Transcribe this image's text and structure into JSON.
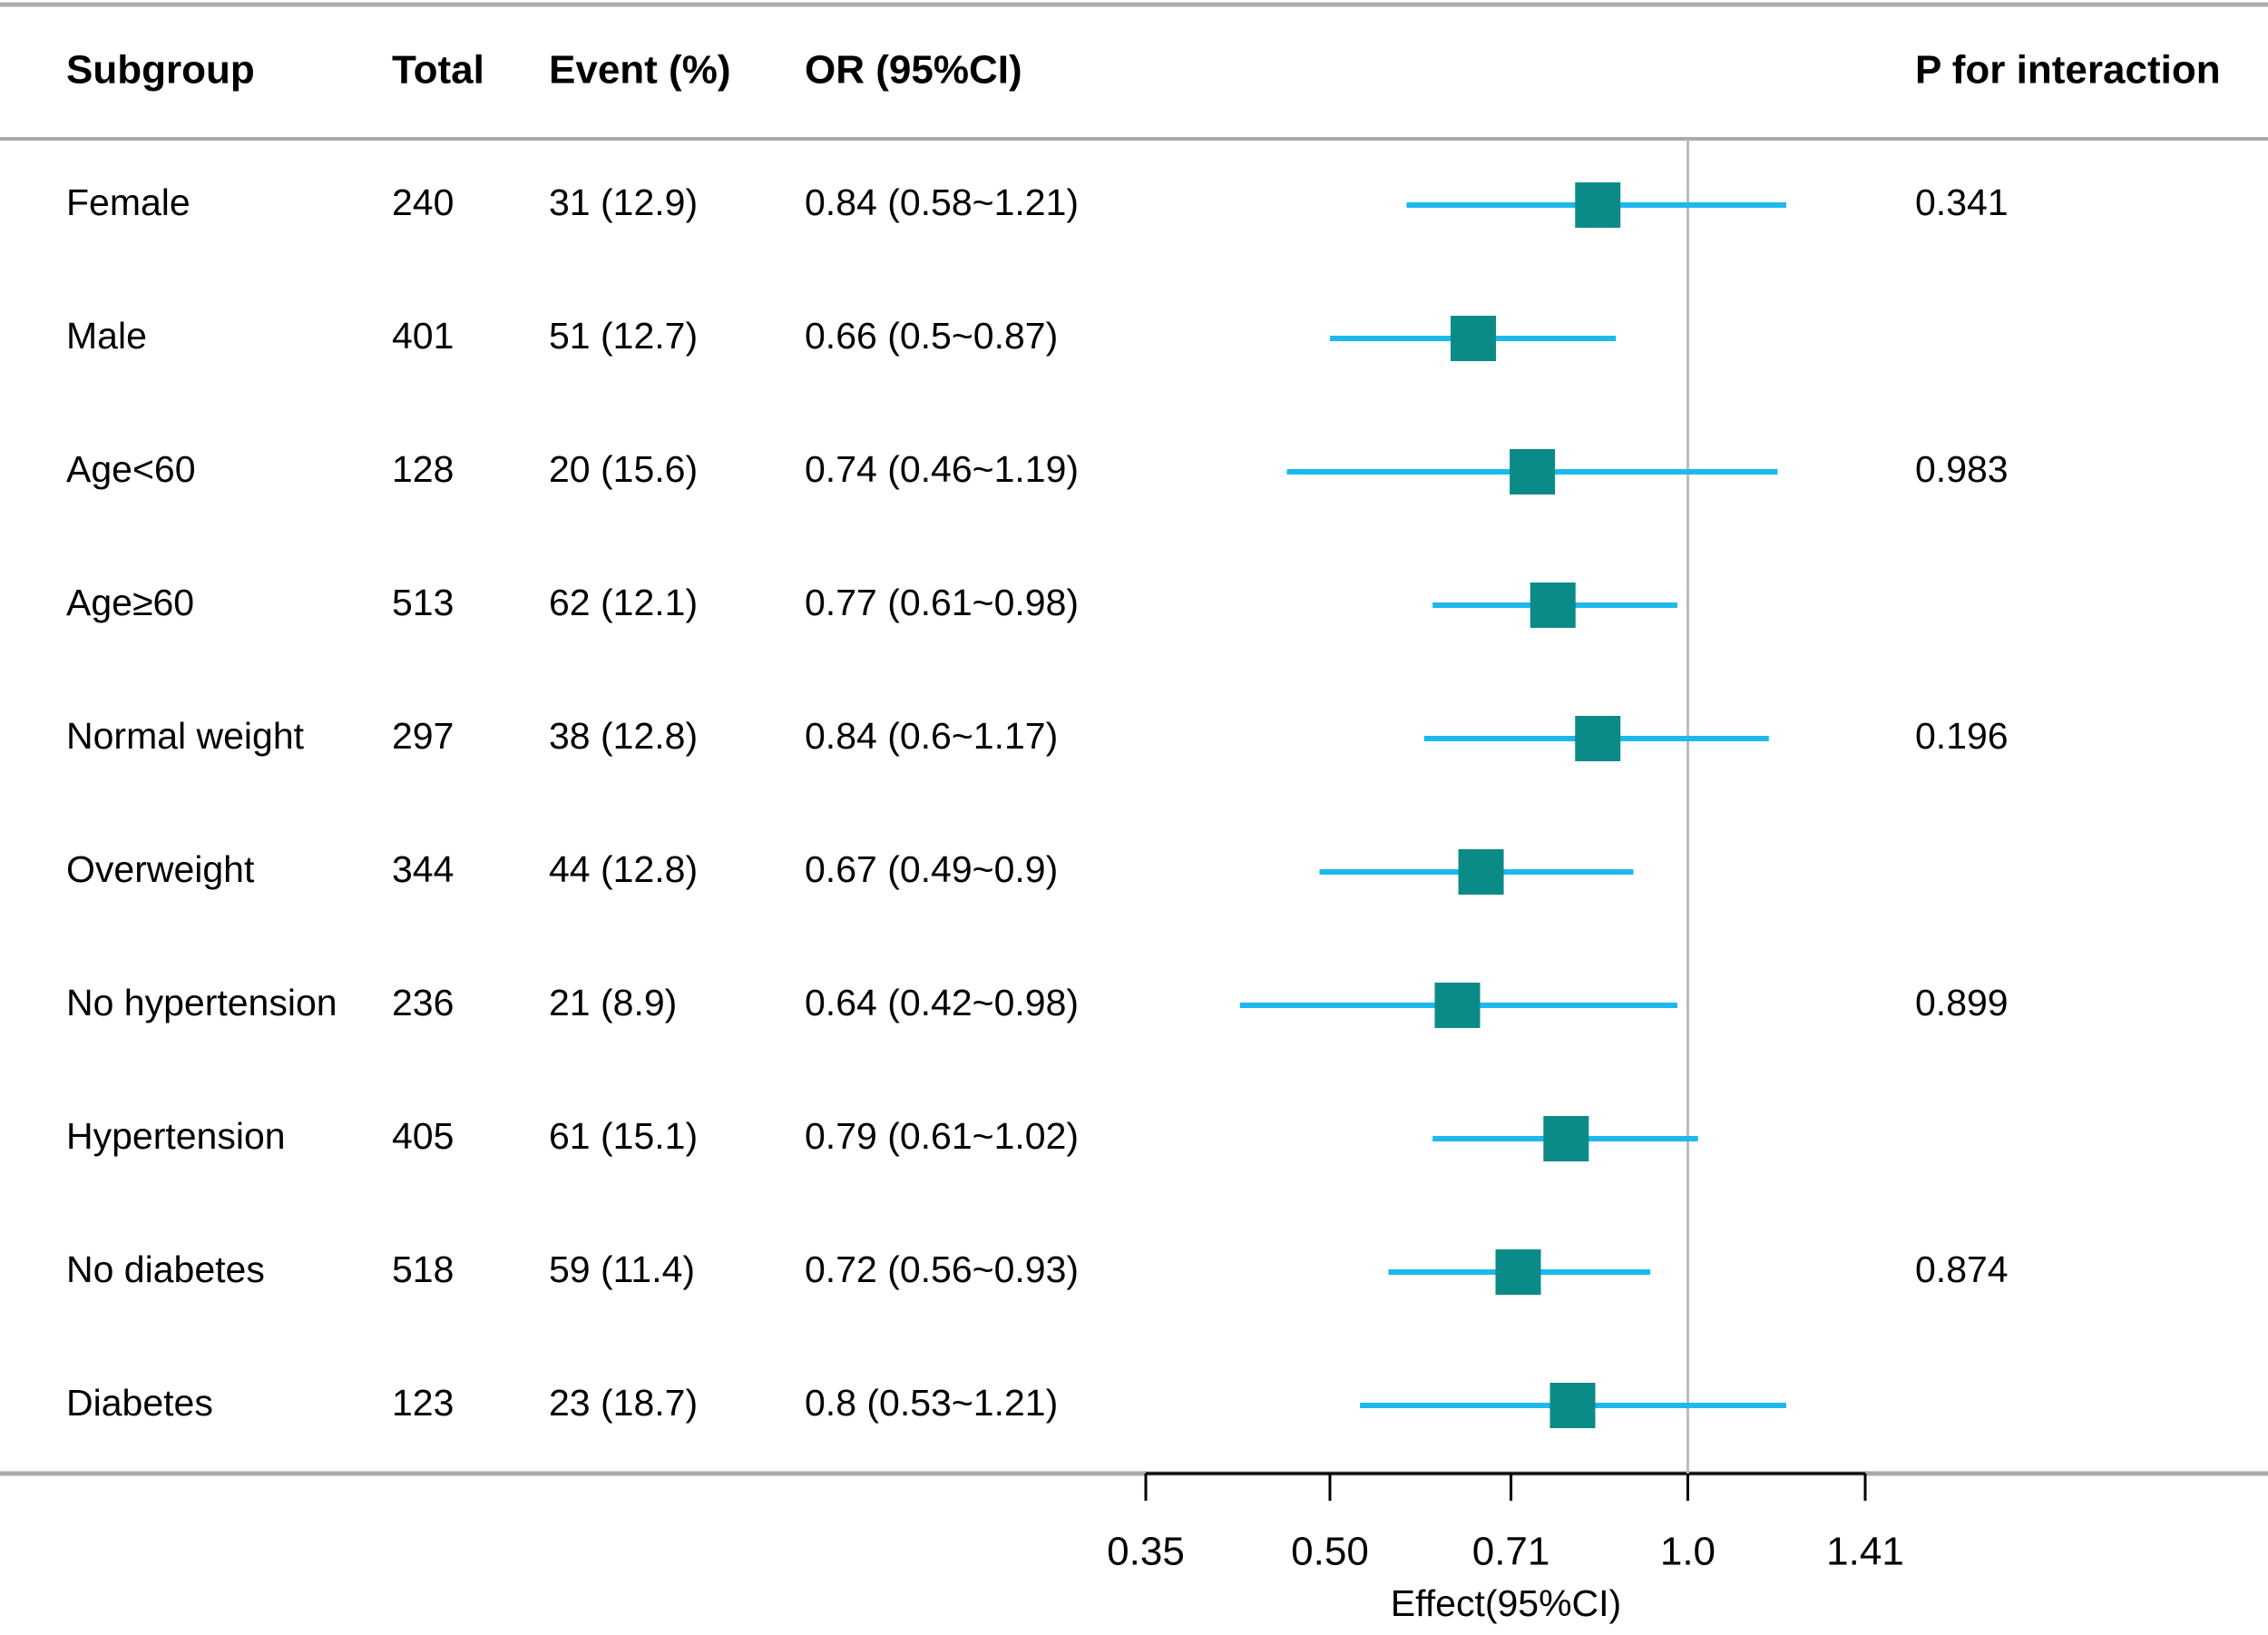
{
  "chart_data": {
    "type": "forest",
    "columns": [
      "Subgroup",
      "Total",
      "Event (%)",
      "OR (95%CI)",
      "P for interaction"
    ],
    "categories": [
      "Female",
      "Male",
      "Age<60",
      "Age≥60",
      "Normal weight",
      "Overweight",
      "No hypertension",
      "Hypertension",
      "No diabetes",
      "Diabetes"
    ],
    "totals": [
      240,
      401,
      128,
      513,
      297,
      344,
      236,
      405,
      518,
      123
    ],
    "events": [
      "31 (12.9)",
      "51 (12.7)",
      "20 (15.6)",
      "62 (12.1)",
      "38 (12.8)",
      "44 (12.8)",
      "21 (8.9)",
      "61 (15.1)",
      "59 (11.4)",
      "23 (18.7)"
    ],
    "values": [
      0.84,
      0.66,
      0.74,
      0.77,
      0.84,
      0.67,
      0.64,
      0.79,
      0.72,
      0.8
    ],
    "lower": [
      0.58,
      0.5,
      0.46,
      0.61,
      0.6,
      0.49,
      0.42,
      0.61,
      0.56,
      0.53
    ],
    "upper": [
      1.21,
      0.87,
      1.19,
      0.98,
      1.17,
      0.9,
      0.98,
      1.02,
      0.93,
      1.21
    ],
    "value_labels": [
      "0.84 (0.58~1.21)",
      "0.66 (0.5~0.87)",
      "0.74 (0.46~1.19)",
      "0.77 (0.61~0.98)",
      "0.84 (0.6~1.17)",
      "0.67 (0.49~0.9)",
      "0.64 (0.42~0.98)",
      "0.79 (0.61~1.02)",
      "0.72 (0.56~0.93)",
      "0.8 (0.53~1.21)"
    ],
    "p_values": [
      0.341,
      null,
      0.983,
      null,
      0.196,
      null,
      0.899,
      null,
      0.874,
      null
    ],
    "xlim": [
      0.35,
      1.41
    ],
    "xticks": [
      0.35,
      {
        "value": 0.5,
        "label": "0.50"
      },
      0.71,
      {
        "value": 1,
        "label": "1.0"
      },
      1.41
    ],
    "xlabel": "Effect(95%CI)",
    "log_x": true,
    "reference_line": 1,
    "ci_color": "#1cb9ec",
    "point_color": "#0b8b87"
  }
}
